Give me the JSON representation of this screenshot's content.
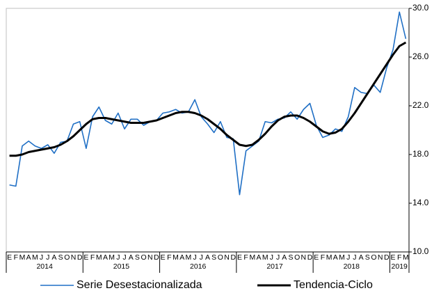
{
  "chart_data": {
    "type": "line",
    "categories": [
      "E",
      "F",
      "M",
      "A",
      "M",
      "J",
      "J",
      "A",
      "S",
      "O",
      "N",
      "D",
      "E",
      "F",
      "M",
      "A",
      "M",
      "J",
      "J",
      "A",
      "S",
      "O",
      "N",
      "D",
      "E",
      "F",
      "M",
      "A",
      "M",
      "J",
      "J",
      "A",
      "S",
      "O",
      "N",
      "D",
      "E",
      "F",
      "M",
      "A",
      "M",
      "J",
      "J",
      "A",
      "S",
      "O",
      "N",
      "D",
      "E",
      "F",
      "M",
      "A",
      "M",
      "J",
      "J",
      "A",
      "S",
      "O",
      "N",
      "D",
      "E",
      "F",
      "M"
    ],
    "years": [
      "2014",
      "2015",
      "2016",
      "2017",
      "2018",
      "2019"
    ],
    "series": [
      {
        "name": "Serie Desestacionalizada",
        "color": "#1f6fc5",
        "width": 1.6,
        "values": [
          15.5,
          15.4,
          18.7,
          19.1,
          18.7,
          18.5,
          18.8,
          18.1,
          19.0,
          19.1,
          20.5,
          20.7,
          18.5,
          21.1,
          21.9,
          20.8,
          20.5,
          21.4,
          20.1,
          20.9,
          20.9,
          20.4,
          20.7,
          20.8,
          21.4,
          21.5,
          21.7,
          21.4,
          21.5,
          22.5,
          21.1,
          20.5,
          19.8,
          20.7,
          19.4,
          19.3,
          14.7,
          18.3,
          18.7,
          19.1,
          20.7,
          20.6,
          20.9,
          21.0,
          21.5,
          20.9,
          21.7,
          22.2,
          20.4,
          19.4,
          19.6,
          20.1,
          19.9,
          21.1,
          23.5,
          23.1,
          23.0,
          23.7,
          23.1,
          25.1,
          26.6,
          29.7,
          27.5
        ]
      },
      {
        "name": "Tendencia-Ciclo",
        "color": "#000000",
        "width": 3,
        "values": [
          17.9,
          17.9,
          18.0,
          18.2,
          18.3,
          18.4,
          18.5,
          18.6,
          18.8,
          19.1,
          19.5,
          20.0,
          20.5,
          20.9,
          21.0,
          21.0,
          20.9,
          20.8,
          20.7,
          20.6,
          20.6,
          20.6,
          20.7,
          20.8,
          21.0,
          21.2,
          21.4,
          21.5,
          21.5,
          21.4,
          21.2,
          20.9,
          20.5,
          20.1,
          19.6,
          19.2,
          18.8,
          18.7,
          18.8,
          19.2,
          19.7,
          20.3,
          20.8,
          21.1,
          21.2,
          21.2,
          21.0,
          20.7,
          20.3,
          19.9,
          19.7,
          19.8,
          20.1,
          20.7,
          21.4,
          22.2,
          23.0,
          23.8,
          24.6,
          25.4,
          26.2,
          26.9,
          27.2
        ]
      }
    ],
    "ylim": [
      10,
      30
    ],
    "yticks": [
      {
        "value": 10,
        "label": "10.0"
      },
      {
        "value": 14,
        "label": "14.0"
      },
      {
        "value": 18,
        "label": "18.0"
      },
      {
        "value": 22,
        "label": "22.0"
      },
      {
        "value": 26,
        "label": "26.0"
      },
      {
        "value": 30,
        "label": "30.0"
      }
    ],
    "grid": false
  }
}
